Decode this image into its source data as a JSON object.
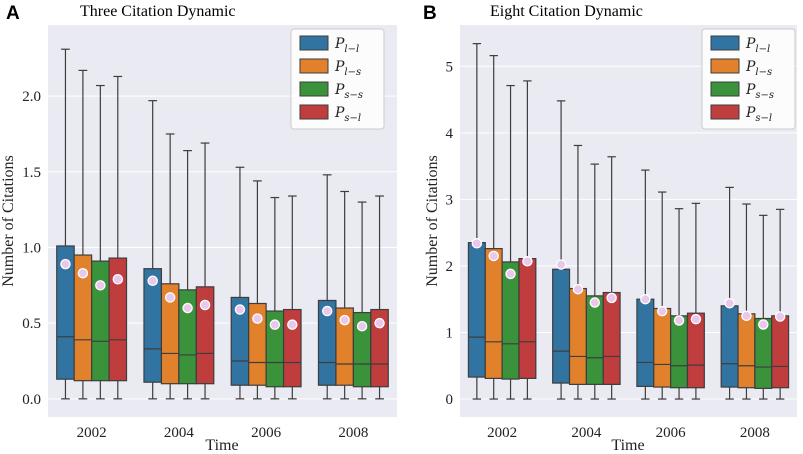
{
  "chart_data": [
    {
      "panel": "A",
      "type": "box",
      "title": "Three Citation Dynamic",
      "xlabel": "Time",
      "ylabel": "Number of Citations",
      "categories": [
        "2002",
        "2004",
        "2006",
        "2008"
      ],
      "ylim": [
        -0.12,
        2.47
      ],
      "yticks": [
        0.0,
        0.5,
        1.0,
        1.5,
        2.0
      ],
      "ytick_labels": [
        "0.0",
        "0.5",
        "1.0",
        "1.5",
        "2.0"
      ],
      "legend": {
        "position": "top-right"
      },
      "series": [
        {
          "name": "P l−l",
          "main": "P",
          "sub": "l−l",
          "color": "#3274a1",
          "boxes": [
            {
              "whislo": 0,
              "q1": 0.13,
              "med": 0.41,
              "q3": 1.01,
              "whishi": 2.31,
              "mean": 0.89
            },
            {
              "whislo": 0,
              "q1": 0.11,
              "med": 0.33,
              "q3": 0.86,
              "whishi": 1.97,
              "mean": 0.78
            },
            {
              "whislo": 0,
              "q1": 0.09,
              "med": 0.25,
              "q3": 0.67,
              "whishi": 1.53,
              "mean": 0.59
            },
            {
              "whislo": 0,
              "q1": 0.09,
              "med": 0.24,
              "q3": 0.65,
              "whishi": 1.48,
              "mean": 0.58
            }
          ]
        },
        {
          "name": "P l−s",
          "main": "P",
          "sub": "l−s",
          "color": "#e1812c",
          "boxes": [
            {
              "whislo": 0,
              "q1": 0.12,
              "med": 0.39,
              "q3": 0.95,
              "whishi": 2.17,
              "mean": 0.83
            },
            {
              "whislo": 0,
              "q1": 0.1,
              "med": 0.3,
              "q3": 0.76,
              "whishi": 1.75,
              "mean": 0.67
            },
            {
              "whislo": 0,
              "q1": 0.09,
              "med": 0.24,
              "q3": 0.63,
              "whishi": 1.44,
              "mean": 0.53
            },
            {
              "whislo": 0,
              "q1": 0.09,
              "med": 0.23,
              "q3": 0.6,
              "whishi": 1.37,
              "mean": 0.52
            }
          ]
        },
        {
          "name": "P s−s",
          "main": "P",
          "sub": "s−s",
          "color": "#3a923a",
          "boxes": [
            {
              "whislo": 0,
              "q1": 0.12,
              "med": 0.38,
              "q3": 0.91,
              "whishi": 2.07,
              "mean": 0.75
            },
            {
              "whislo": 0,
              "q1": 0.1,
              "med": 0.29,
              "q3": 0.72,
              "whishi": 1.64,
              "mean": 0.6
            },
            {
              "whislo": 0,
              "q1": 0.08,
              "med": 0.24,
              "q3": 0.58,
              "whishi": 1.33,
              "mean": 0.49
            },
            {
              "whislo": 0,
              "q1": 0.08,
              "med": 0.23,
              "q3": 0.57,
              "whishi": 1.3,
              "mean": 0.48
            }
          ]
        },
        {
          "name": "P s−l",
          "main": "P",
          "sub": "s−l",
          "color": "#c03d3e",
          "boxes": [
            {
              "whislo": 0,
              "q1": 0.12,
              "med": 0.39,
              "q3": 0.93,
              "whishi": 2.13,
              "mean": 0.79
            },
            {
              "whislo": 0,
              "q1": 0.1,
              "med": 0.3,
              "q3": 0.74,
              "whishi": 1.69,
              "mean": 0.62
            },
            {
              "whislo": 0,
              "q1": 0.08,
              "med": 0.24,
              "q3": 0.59,
              "whishi": 1.34,
              "mean": 0.49
            },
            {
              "whislo": 0,
              "q1": 0.08,
              "med": 0.23,
              "q3": 0.59,
              "whishi": 1.34,
              "mean": 0.5
            }
          ]
        }
      ]
    },
    {
      "panel": "B",
      "type": "box",
      "title": "Eight Citation Dynamic",
      "xlabel": "Time",
      "ylabel": "Number of Citations",
      "categories": [
        "2002",
        "2004",
        "2006",
        "2008"
      ],
      "ylim": [
        -0.27,
        5.62
      ],
      "yticks": [
        0,
        1,
        2,
        3,
        4,
        5
      ],
      "ytick_labels": [
        "0",
        "1",
        "2",
        "3",
        "4",
        "5"
      ],
      "legend": {
        "position": "top-right"
      },
      "series": [
        {
          "name": "P l−l",
          "main": "P",
          "sub": "l−l",
          "color": "#3274a1",
          "boxes": [
            {
              "whislo": 0,
              "q1": 0.33,
              "med": 0.93,
              "q3": 2.35,
              "whishi": 5.34,
              "mean": 2.34
            },
            {
              "whislo": 0,
              "q1": 0.24,
              "med": 0.72,
              "q3": 1.95,
              "whishi": 4.48,
              "mean": 2.02
            },
            {
              "whislo": 0,
              "q1": 0.19,
              "med": 0.55,
              "q3": 1.5,
              "whishi": 3.44,
              "mean": 1.5
            },
            {
              "whislo": 0,
              "q1": 0.18,
              "med": 0.53,
              "q3": 1.4,
              "whishi": 3.18,
              "mean": 1.44
            }
          ]
        },
        {
          "name": "P l−s",
          "main": "P",
          "sub": "l−s",
          "color": "#e1812c",
          "boxes": [
            {
              "whislo": 0,
              "q1": 0.31,
              "med": 0.86,
              "q3": 2.26,
              "whishi": 5.16,
              "mean": 2.15
            },
            {
              "whislo": 0,
              "q1": 0.22,
              "med": 0.64,
              "q3": 1.66,
              "whishi": 3.81,
              "mean": 1.65
            },
            {
              "whislo": 0,
              "q1": 0.18,
              "med": 0.52,
              "q3": 1.36,
              "whishi": 3.11,
              "mean": 1.32
            },
            {
              "whislo": 0,
              "q1": 0.17,
              "med": 0.5,
              "q3": 1.28,
              "whishi": 2.93,
              "mean": 1.25
            }
          ]
        },
        {
          "name": "P s−s",
          "main": "P",
          "sub": "s−s",
          "color": "#3a923a",
          "boxes": [
            {
              "whislo": 0,
              "q1": 0.3,
              "med": 0.83,
              "q3": 2.06,
              "whishi": 4.71,
              "mean": 1.88
            },
            {
              "whislo": 0,
              "q1": 0.22,
              "med": 0.62,
              "q3": 1.55,
              "whishi": 3.53,
              "mean": 1.45
            },
            {
              "whislo": 0,
              "q1": 0.17,
              "med": 0.5,
              "q3": 1.25,
              "whishi": 2.86,
              "mean": 1.18
            },
            {
              "whislo": 0,
              "q1": 0.16,
              "med": 0.48,
              "q3": 1.21,
              "whishi": 2.76,
              "mean": 1.12
            }
          ]
        },
        {
          "name": "P s−l",
          "main": "P",
          "sub": "s−l",
          "color": "#c03d3e",
          "boxes": [
            {
              "whislo": 0,
              "q1": 0.31,
              "med": 0.86,
              "q3": 2.11,
              "whishi": 4.78,
              "mean": 2.07
            },
            {
              "whislo": 0,
              "q1": 0.22,
              "med": 0.64,
              "q3": 1.6,
              "whishi": 3.64,
              "mean": 1.52
            },
            {
              "whislo": 0,
              "q1": 0.17,
              "med": 0.51,
              "q3": 1.29,
              "whishi": 2.94,
              "mean": 1.2
            },
            {
              "whislo": 0,
              "q1": 0.17,
              "med": 0.49,
              "q3": 1.25,
              "whishi": 2.85,
              "mean": 1.24
            }
          ]
        }
      ]
    }
  ]
}
